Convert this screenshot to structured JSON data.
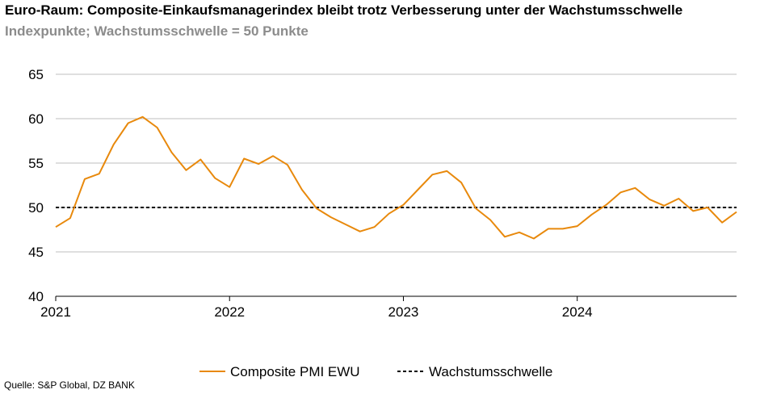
{
  "chart_data": {
    "type": "line",
    "title": "Euro-Raum: Composite-Einkaufsmanagerindex bleibt trotz Verbesserung unter der Wachstumsschwelle",
    "subtitle": "Indexpunkte; Wachstumsschwelle = 50 Punkte",
    "xlabel": "",
    "ylabel": "",
    "ylim": [
      40,
      65
    ],
    "yticks": [
      "40",
      "45",
      "50",
      "55",
      "60",
      "65"
    ],
    "xticks": [
      "2021",
      "2022",
      "2023",
      "2024"
    ],
    "x_start": "2021-01",
    "x_end": "2024-12",
    "grid": true,
    "legend_position": "bottom",
    "series": [
      {
        "name": "Composite PMI EWU",
        "color": "#e8890c",
        "style": "solid",
        "x": [
          "2021-01",
          "2021-02",
          "2021-03",
          "2021-04",
          "2021-05",
          "2021-06",
          "2021-07",
          "2021-08",
          "2021-09",
          "2021-10",
          "2021-11",
          "2021-12",
          "2022-01",
          "2022-02",
          "2022-03",
          "2022-04",
          "2022-05",
          "2022-06",
          "2022-07",
          "2022-08",
          "2022-09",
          "2022-10",
          "2022-11",
          "2022-12",
          "2023-01",
          "2023-02",
          "2023-03",
          "2023-04",
          "2023-05",
          "2023-06",
          "2023-07",
          "2023-08",
          "2023-09",
          "2023-10",
          "2023-11",
          "2023-12",
          "2024-01",
          "2024-02",
          "2024-03",
          "2024-04",
          "2024-05",
          "2024-06",
          "2024-07",
          "2024-08",
          "2024-09",
          "2024-10",
          "2024-11",
          "2024-12"
        ],
        "values": [
          47.8,
          48.8,
          53.2,
          53.8,
          57.1,
          59.5,
          60.2,
          59.0,
          56.2,
          54.2,
          55.4,
          53.3,
          52.3,
          55.5,
          54.9,
          55.8,
          54.8,
          52.0,
          49.9,
          48.9,
          48.1,
          47.3,
          47.8,
          49.3,
          50.3,
          52.0,
          53.7,
          54.1,
          52.8,
          49.9,
          48.6,
          46.7,
          47.2,
          46.5,
          47.6,
          47.6,
          47.9,
          49.2,
          50.3,
          51.7,
          52.2,
          50.9,
          50.2,
          51.0,
          49.6,
          50.0,
          48.3,
          49.5
        ]
      },
      {
        "name": "Wachstumsschwelle",
        "color": "#000000",
        "style": "dashed",
        "values": [
          50
        ]
      }
    ]
  },
  "source_text": "Quelle: S&P Global, DZ BANK"
}
